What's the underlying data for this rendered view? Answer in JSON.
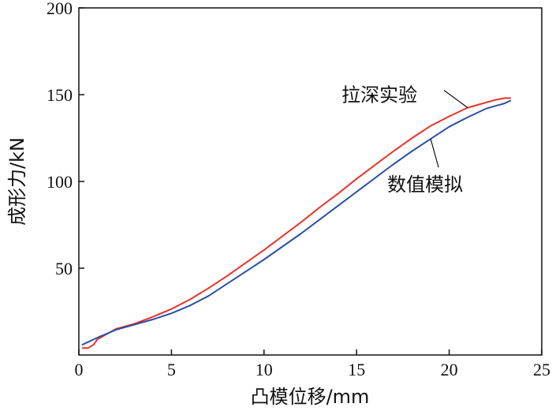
{
  "chart_data": {
    "type": "line",
    "xlabel": "凸模位移/mm",
    "ylabel": "成形力/kN",
    "xlim": [
      0,
      25
    ],
    "ylim": [
      0,
      200
    ],
    "xticks": [
      0,
      5,
      10,
      15,
      20,
      25
    ],
    "yticks": [
      200,
      150,
      100,
      50
    ],
    "grid": false,
    "series": [
      {
        "name": "拉深实验",
        "color": "#e8332a",
        "x": [
          0.2,
          0.5,
          0.8,
          1.0,
          1.5,
          2.0,
          3.0,
          4.0,
          5.0,
          6.0,
          7.0,
          8.0,
          9.0,
          10.0,
          11.0,
          12.0,
          13.0,
          14.0,
          15.0,
          16.0,
          17.0,
          18.0,
          19.0,
          20.0,
          21.0,
          22.0,
          22.5,
          23.0,
          23.3
        ],
        "y": [
          4,
          4,
          6,
          9,
          12,
          15,
          18,
          22,
          26.5,
          32,
          38.5,
          45.5,
          53,
          60.5,
          68.5,
          76.5,
          85,
          93,
          101.5,
          109.5,
          117.5,
          125,
          132,
          137.5,
          142.5,
          145.5,
          147,
          148,
          148
        ]
      },
      {
        "name": "数值模拟",
        "color": "#2a4fa8",
        "x": [
          0.2,
          1.0,
          2.0,
          3.0,
          4.0,
          5.0,
          6.0,
          7.0,
          8.0,
          9.0,
          10.0,
          11.0,
          12.0,
          13.0,
          14.0,
          15.0,
          16.0,
          17.0,
          18.0,
          19.0,
          20.0,
          21.0,
          22.0,
          23.0,
          23.3
        ],
        "y": [
          6,
          10,
          14.5,
          17.5,
          20.5,
          24,
          28.5,
          34,
          41,
          48,
          55,
          62.5,
          70,
          78,
          86,
          94,
          102,
          110,
          117.5,
          124.5,
          131.5,
          137,
          142,
          145,
          146.5
        ]
      }
    ],
    "annotations": [
      {
        "text": "拉深实验",
        "series": 0,
        "x": 21.0
      },
      {
        "text": "数值模拟",
        "series": 1,
        "x": 19.0
      }
    ]
  }
}
